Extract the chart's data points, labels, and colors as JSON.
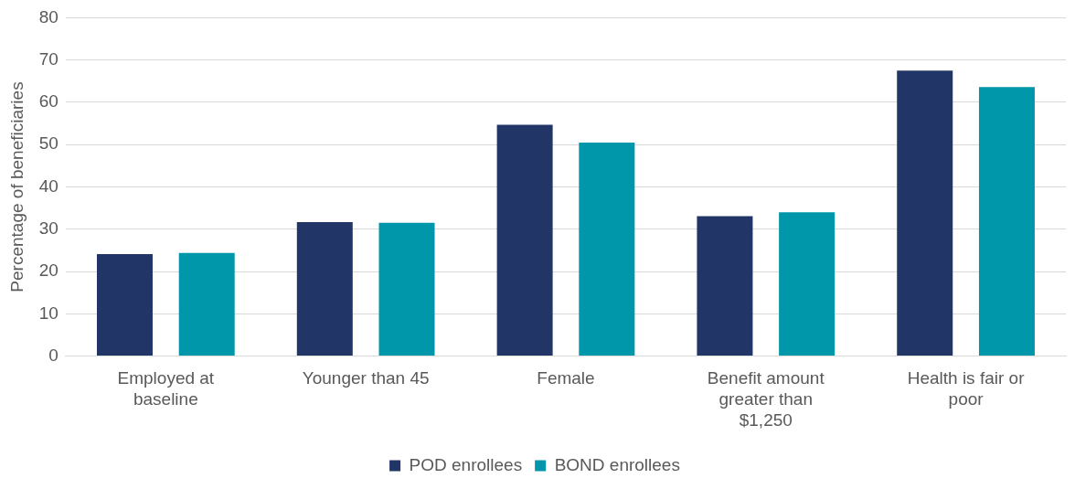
{
  "chart_data": {
    "type": "bar",
    "ylabel": "Percentage of beneficiaries",
    "categories": [
      "Employed at baseline",
      "Younger than 45",
      "Female",
      "Benefit amount greater than $1,250",
      "Health is fair or poor"
    ],
    "series": [
      {
        "name": "POD enrollees",
        "color": "#213566",
        "values": [
          24.1,
          31.7,
          54.7,
          33.1,
          67.5
        ]
      },
      {
        "name": "BOND enrollees",
        "color": "#0097aa",
        "values": [
          24.4,
          31.5,
          50.5,
          34.0,
          63.6
        ]
      }
    ],
    "ylim": [
      0,
      80
    ],
    "yticks": [
      0,
      10,
      20,
      30,
      40,
      50,
      60,
      70,
      80
    ],
    "grid": "y",
    "legend": "bottom"
  }
}
